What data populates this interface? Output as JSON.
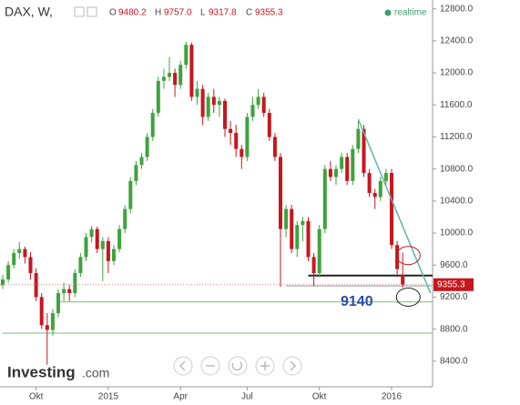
{
  "chart_data": {
    "type": "candlestick",
    "header": {
      "symbol": "DAX, W,",
      "o": "O",
      "h": "H",
      "l": "L",
      "c": "C",
      "values": [
        "9480.2",
        "9757.0",
        "9317.8",
        "9355.3"
      ],
      "realtime": "realtime"
    },
    "logo": {
      "name": "Investing",
      "suffix": ".com"
    },
    "categories": [
      null,
      null,
      null,
      null,
      null,
      null,
      "Okt",
      null,
      null,
      null,
      null,
      null,
      null,
      null,
      null,
      null,
      null,
      null,
      null,
      "2015",
      null,
      null,
      null,
      null,
      null,
      null,
      null,
      null,
      null,
      null,
      null,
      null,
      "Apr",
      null,
      null,
      null,
      null,
      null,
      null,
      null,
      null,
      null,
      null,
      null,
      "Jul",
      null,
      null,
      null,
      null,
      null,
      null,
      null,
      null,
      null,
      null,
      null,
      null,
      "Okt",
      null,
      null,
      null,
      null,
      null,
      null,
      null,
      null,
      null,
      null,
      null,
      null,
      "2016",
      null,
      null
    ],
    "open": [
      9350,
      9420,
      9600,
      9750,
      9800,
      9700,
      9500,
      9200,
      8850,
      8790,
      9000,
      9250,
      9300,
      9250,
      9500,
      9700,
      9950,
      10050,
      9800,
      9900,
      9650,
      9800,
      10050,
      10300,
      10650,
      10850,
      10950,
      11200,
      11500,
      11900,
      11950,
      12000,
      11850,
      12100,
      12350,
      11700,
      11800,
      11450,
      11700,
      11600,
      11650,
      11300,
      11250,
      11050,
      10950,
      11450,
      11600,
      11700,
      11500,
      11200,
      10950,
      10050,
      10300,
      9800,
      10100,
      10150,
      9700,
      9500,
      10050,
      10800,
      10700,
      10800,
      10950,
      10650,
      11050,
      11300,
      10750,
      10500,
      10450,
      10650,
      10750,
      9850,
      9480.2
    ],
    "high": [
      9480,
      9650,
      9800,
      9890,
      9830,
      9760,
      9560,
      9250,
      9000,
      9050,
      9300,
      9380,
      9350,
      9550,
      9750,
      10000,
      10090,
      10080,
      9950,
      9950,
      9850,
      10100,
      10350,
      10700,
      10900,
      11000,
      11250,
      11550,
      11950,
      12050,
      12200,
      12050,
      12150,
      12390,
      12380,
      11900,
      11850,
      11750,
      11800,
      11700,
      11680,
      11400,
      11350,
      11100,
      11500,
      11700,
      11800,
      11750,
      11550,
      11250,
      11000,
      10350,
      10350,
      10150,
      10200,
      10200,
      9750,
      10100,
      10850,
      10900,
      10850,
      11000,
      11000,
      11100,
      11400,
      11350,
      10800,
      10550,
      10700,
      10800,
      10800,
      9900,
      9757.0
    ],
    "low": [
      9300,
      9380,
      9560,
      9680,
      9620,
      9420,
      9150,
      8800,
      8355,
      8720,
      8950,
      9150,
      9150,
      9200,
      9450,
      9650,
      9880,
      9750,
      9400,
      9500,
      9600,
      9760,
      10000,
      10250,
      10600,
      10800,
      10900,
      11150,
      11450,
      11800,
      11900,
      11700,
      11800,
      12050,
      11650,
      11600,
      11350,
      11400,
      11500,
      11450,
      11200,
      11100,
      10950,
      10800,
      10900,
      11400,
      11550,
      11450,
      11150,
      10900,
      9330,
      9950,
      9750,
      9700,
      9900,
      9650,
      9340,
      9450,
      10000,
      10650,
      10600,
      10750,
      10600,
      10600,
      11000,
      10700,
      10450,
      10300,
      10400,
      10600,
      9800,
      9450,
      9317.8
    ],
    "close": [
      9420,
      9600,
      9750,
      9800,
      9700,
      9500,
      9200,
      8850,
      8790,
      9000,
      9250,
      9300,
      9250,
      9500,
      9700,
      9950,
      10050,
      9800,
      9900,
      9650,
      9800,
      10050,
      10300,
      10650,
      10850,
      10950,
      11200,
      11500,
      11900,
      11950,
      12000,
      11850,
      12100,
      12350,
      11700,
      11800,
      11450,
      11700,
      11600,
      11650,
      11300,
      11250,
      11050,
      10950,
      11450,
      11600,
      11700,
      11500,
      11200,
      10950,
      10050,
      10300,
      9800,
      10100,
      10150,
      9700,
      9500,
      10050,
      10800,
      10700,
      10800,
      10950,
      10650,
      11050,
      11300,
      10750,
      10500,
      10450,
      10650,
      10750,
      9850,
      9550,
      9355.3
    ],
    "up_color": "#3ea33e",
    "down_color": "#c8161d",
    "ylim": [
      8080,
      12910
    ],
    "yticks": [
      {
        "value": 8400,
        "label": "8400.0"
      },
      {
        "value": 8800,
        "label": "8800.0"
      },
      {
        "value": 9200,
        "label": "9200.0"
      },
      {
        "value": 9600,
        "label": "9600.0"
      },
      {
        "value": 10000,
        "label": "10000.0"
      },
      {
        "value": 10400,
        "label": "10400.0"
      },
      {
        "value": 10800,
        "label": "10800.0"
      },
      {
        "value": 11200,
        "label": "11200.0"
      },
      {
        "value": 11600,
        "label": "11600.0"
      },
      {
        "value": 12000,
        "label": "12000.0"
      },
      {
        "value": 12400,
        "label": "12400.0"
      },
      {
        "value": 12800,
        "label": "12800.0"
      }
    ],
    "levels": [
      {
        "value": 9470,
        "color": "#222222",
        "from": 55
      },
      {
        "value": 9340,
        "color": "#8aa0a0",
        "from": 51
      },
      {
        "value": 9140,
        "color": "#7fb87f",
        "from": 10
      },
      {
        "value": 8750,
        "color": "#7fb87f",
        "from": 0
      }
    ],
    "annotation": {
      "text": "9140",
      "value": 9140
    },
    "trendline": {
      "color": "#5fb3a8",
      "from": [
        64,
        11420
      ],
      "to": [
        77,
        9250
      ]
    },
    "circles": [
      {
        "index": 73,
        "value": 9720,
        "color": "#c8161d"
      },
      {
        "index": 73,
        "value": 9200,
        "color": "#222222"
      }
    ]
  }
}
